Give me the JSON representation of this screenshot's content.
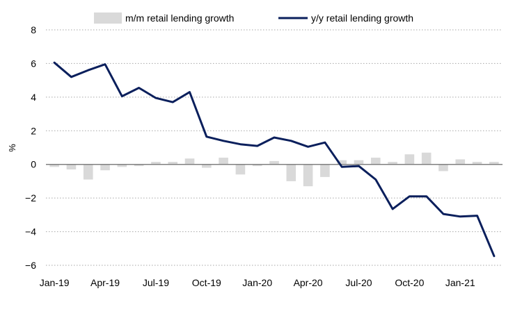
{
  "chart_data": {
    "type": "bar+line",
    "title": "",
    "xlabel": "",
    "ylabel": "%",
    "ylim": [
      -6,
      8
    ],
    "y_ticks": [
      8,
      6,
      4,
      2,
      0,
      -2,
      -4,
      -6
    ],
    "grid": "horizontal dotted",
    "legend_position": "top",
    "categories": [
      "Jan-19",
      "Feb-19",
      "Mar-19",
      "Apr-19",
      "May-19",
      "Jun-19",
      "Jul-19",
      "Aug-19",
      "Sep-19",
      "Oct-19",
      "Nov-19",
      "Dec-19",
      "Jan-20",
      "Feb-20",
      "Mar-20",
      "Apr-20",
      "May-20",
      "Jun-20",
      "Jul-20",
      "Aug-20",
      "Sep-20",
      "Oct-20",
      "Nov-20",
      "Dec-20",
      "Jan-21",
      "Feb-21",
      "Mar-21"
    ],
    "x_tick_labels": [
      "Jan-19",
      "Apr-19",
      "Jul-19",
      "Oct-19",
      "Jan-20",
      "Apr-20",
      "Jul-20",
      "Oct-20",
      "Jan-21"
    ],
    "series": [
      {
        "name": "m/m retail lending growth",
        "type": "bar",
        "color": "#d9d9d9",
        "values": [
          -0.15,
          -0.3,
          -0.9,
          -0.35,
          -0.15,
          -0.1,
          0.15,
          0.15,
          0.35,
          -0.2,
          0.4,
          -0.6,
          -0.1,
          0.2,
          -1.0,
          -1.3,
          -0.75,
          0.25,
          0.25,
          0.4,
          0.15,
          0.6,
          0.7,
          -0.4,
          0.3,
          0.15,
          0.15
        ]
      },
      {
        "name": "y/y retail lending growth",
        "type": "line",
        "color": "#0a1f5c",
        "values": [
          6.05,
          5.2,
          5.6,
          5.95,
          4.05,
          4.55,
          3.95,
          3.7,
          4.3,
          1.65,
          1.4,
          1.2,
          1.1,
          1.6,
          1.4,
          1.05,
          1.3,
          -0.15,
          -0.1,
          -0.9,
          -2.65,
          -1.9,
          -1.9,
          -2.95,
          -3.1,
          -3.05,
          -5.45
        ]
      }
    ]
  }
}
